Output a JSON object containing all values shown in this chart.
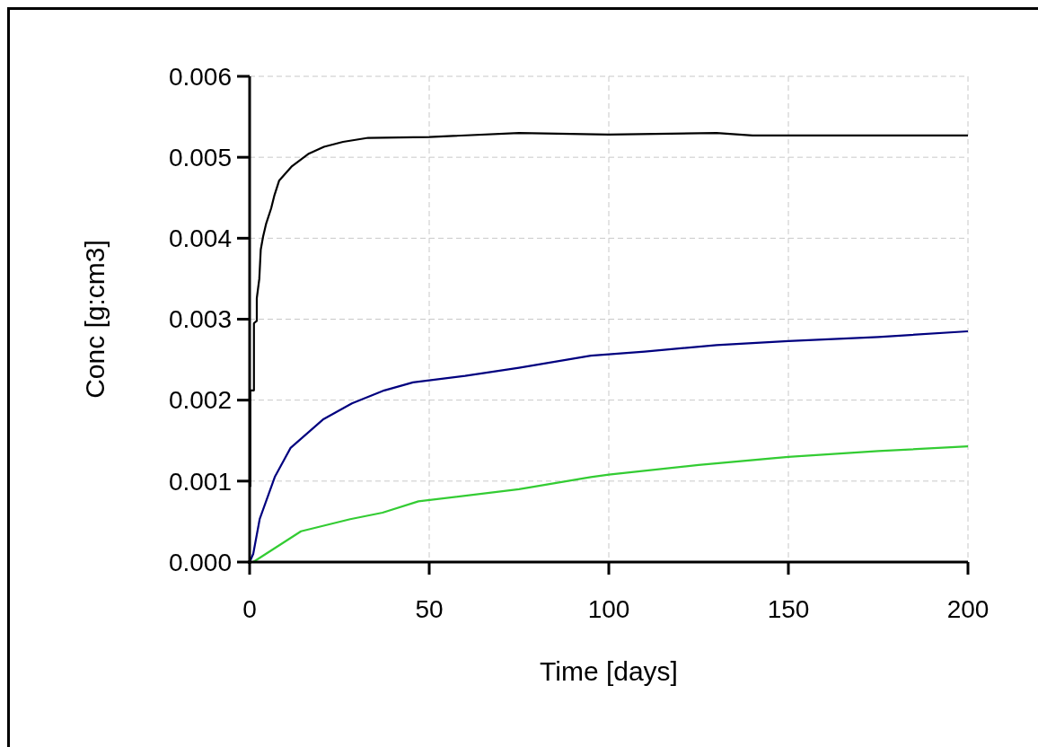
{
  "chart_data": {
    "type": "line",
    "xlabel": "Time [days]",
    "ylabel": "Conc [g:cm3]",
    "xlim": [
      0,
      200
    ],
    "xticks": [
      0,
      50,
      100,
      150,
      200
    ],
    "ylim": [
      0,
      0.006
    ],
    "yticks": [
      {
        "value": 0,
        "label": "0.000"
      },
      {
        "value": 0.001,
        "label": "0.001"
      },
      {
        "value": 0.002,
        "label": "0.002"
      },
      {
        "value": 0.003,
        "label": "0.003"
      },
      {
        "value": 0.004,
        "label": "0.004"
      },
      {
        "value": 0.005,
        "label": "0.005"
      },
      {
        "value": 0.006,
        "label": "0.006"
      }
    ],
    "grid": true,
    "line_style": "solid",
    "series": [
      {
        "color": "#000000",
        "x": [
          0.2,
          0.2,
          1.2,
          1.2,
          2,
          2,
          2.7,
          3.1,
          3.75,
          4.6,
          6,
          6.9,
          8.2,
          11.8,
          16.3,
          20.7,
          26,
          33,
          50,
          75,
          100,
          130,
          140,
          200
        ],
        "values": [
          0.00093,
          0.00212,
          0.00212,
          0.00295,
          0.00298,
          0.00326,
          0.0035,
          0.00386,
          0.00402,
          0.00418,
          0.00437,
          0.00453,
          0.00471,
          0.00489,
          0.00504,
          0.00513,
          0.00519,
          0.00524,
          0.00525,
          0.0053,
          0.00528,
          0.0053,
          0.00527,
          0.00527
        ]
      },
      {
        "color": "#00007f",
        "x": [
          0,
          1,
          2.8,
          7,
          11.4,
          20.4,
          28.5,
          37.5,
          45.5,
          60,
          75,
          95,
          110,
          130,
          150,
          175,
          200
        ],
        "values": [
          0,
          0.0001,
          0.00053,
          0.00105,
          0.00141,
          0.00176,
          0.00196,
          0.00212,
          0.00222,
          0.0023,
          0.0024,
          0.00255,
          0.0026,
          0.00268,
          0.00273,
          0.00278,
          0.00285
        ]
      },
      {
        "color": "#33cc33",
        "x": [
          1,
          14.3,
          28,
          37,
          47,
          75,
          95,
          100,
          125,
          150,
          175,
          200
        ],
        "values": [
          0,
          0.00038,
          0.00053,
          0.00061,
          0.00075,
          0.0009,
          0.00105,
          0.00108,
          0.0012,
          0.0013,
          0.00137,
          0.00143
        ]
      }
    ]
  }
}
